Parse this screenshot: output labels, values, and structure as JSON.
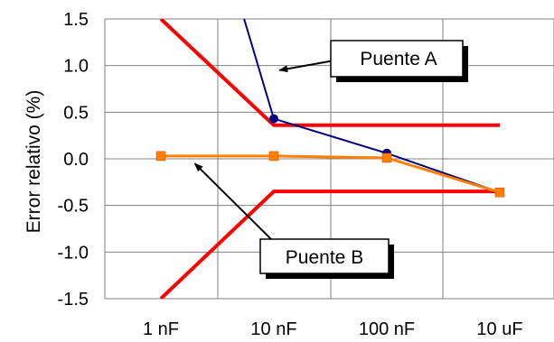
{
  "chart_data": {
    "type": "line",
    "title": "",
    "xlabel": "",
    "ylabel": "Error relativo (%)",
    "categories": [
      "1 nF",
      "10 nF",
      "100 nF",
      "10 uF"
    ],
    "ylim": [
      -1.5,
      1.5
    ],
    "y_ticks": [
      "1.5",
      "1.0",
      "0.5",
      "0.0",
      "-0.5",
      "-1.0",
      "-1.5"
    ],
    "y_tick_values": [
      1.5,
      1.0,
      0.5,
      0.0,
      -0.5,
      -1.0,
      -1.5
    ],
    "grid": true,
    "series": [
      {
        "name": "Puente A",
        "color": "#000080",
        "marker": "circle",
        "values": [
          4.5,
          0.43,
          0.06,
          -0.36
        ]
      },
      {
        "name": "Puente B",
        "color": "#ff8000",
        "marker": "square",
        "values": [
          0.03,
          0.03,
          0.01,
          -0.36
        ]
      },
      {
        "color": "#ff0000",
        "marker": "none",
        "values": [
          1.5,
          0.36,
          0.36,
          0.36
        ]
      },
      {
        "color": "#ff0000",
        "marker": "none",
        "values": [
          -1.5,
          -0.35,
          -0.35,
          -0.35
        ]
      }
    ],
    "annotations": [
      {
        "label": "Puente A",
        "series": 0,
        "category_index": 1.05,
        "value": 0.95
      },
      {
        "label": "Puente B",
        "series": 1,
        "category_index": 0.3,
        "value": -0.05
      }
    ]
  }
}
